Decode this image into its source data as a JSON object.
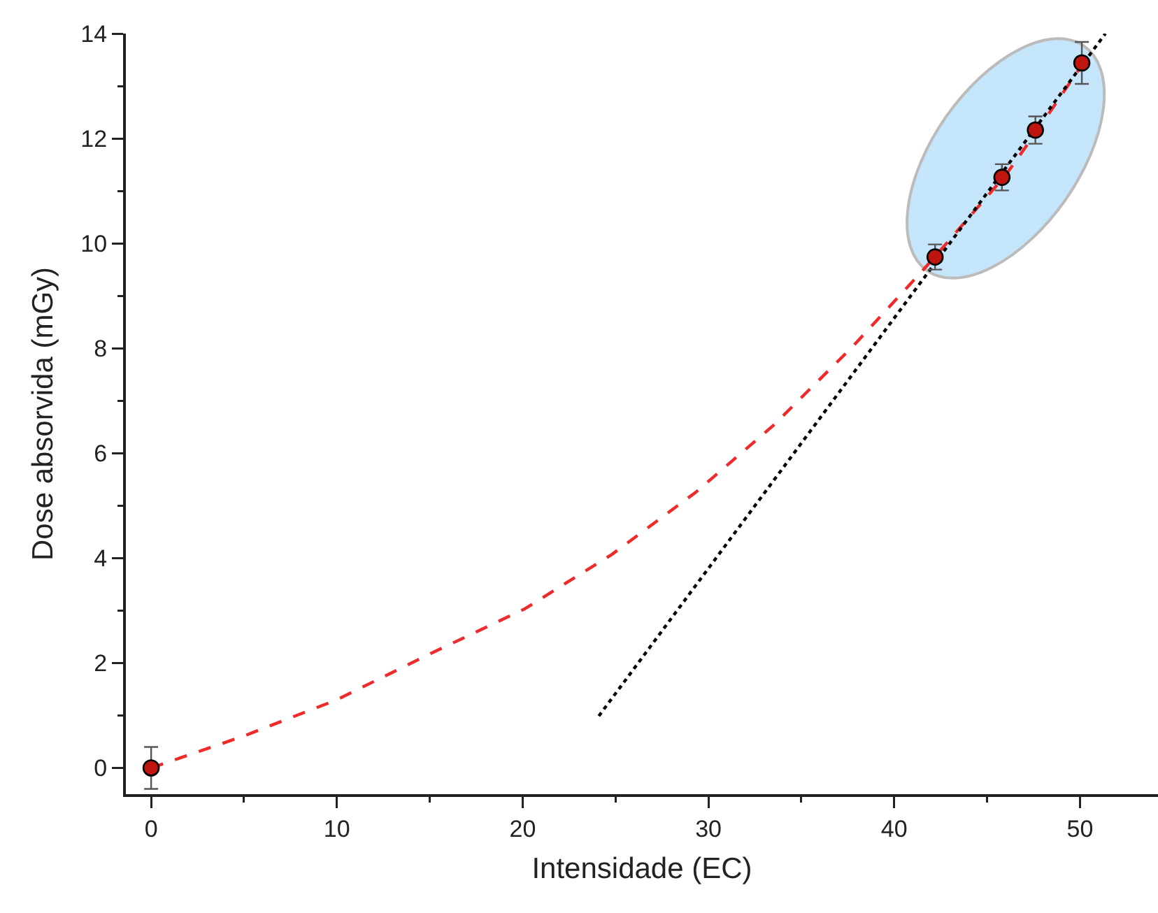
{
  "chart_data": {
    "type": "scatter",
    "xlabel": "Intensidade (EC)",
    "ylabel": "Dose absorvida (mGy)",
    "xlim": [
      -1.36,
      54.2
    ],
    "ylim": [
      -0.5,
      14
    ],
    "xticks": [
      0,
      {
        "value": 5,
        "label": null
      },
      10,
      {
        "value": 15,
        "label": null
      },
      20,
      {
        "value": 25,
        "label": null
      },
      30,
      {
        "value": 35,
        "label": null
      },
      40,
      {
        "value": 45,
        "label": null
      },
      50
    ],
    "yticks": [
      0,
      {
        "value": 1,
        "label": null
      },
      2,
      {
        "value": 3,
        "label": null
      },
      4,
      {
        "value": 5,
        "label": null
      },
      6,
      {
        "value": 7,
        "label": null
      },
      8,
      {
        "value": 9,
        "label": null
      },
      10,
      {
        "value": 11,
        "label": null
      },
      12,
      {
        "value": 13,
        "label": null
      },
      14
    ],
    "series": [
      {
        "type": "line",
        "color": "#ee2a2a",
        "line_style": "dashed",
        "marker": "none",
        "x": [
          0,
          5,
          10,
          15.1,
          20.1,
          24.8,
          29.3,
          33.5,
          37.7,
          41.3,
          42.2,
          46,
          47.8,
          50.2
        ],
        "values": [
          0,
          0.61,
          1.3,
          2.19,
          3.03,
          4.07,
          5.25,
          6.53,
          8.01,
          9.39,
          9.75,
          11.3,
          12.2,
          13.45
        ]
      },
      {
        "type": "line",
        "color": "#000000",
        "line_style": "dotted",
        "marker": "none",
        "x": [
          24.1,
          51.37
        ],
        "values": [
          0.99,
          14
        ]
      },
      {
        "type": "scatter",
        "color": "#c0150f",
        "marker": "circle",
        "x": [
          0,
          42.2,
          45.8,
          47.6,
          50.1
        ],
        "values": [
          0,
          9.74,
          11.26,
          12.16,
          13.44
        ],
        "errors": [
          0.4,
          0.24,
          0.25,
          0.26,
          0.4
        ]
      }
    ]
  }
}
